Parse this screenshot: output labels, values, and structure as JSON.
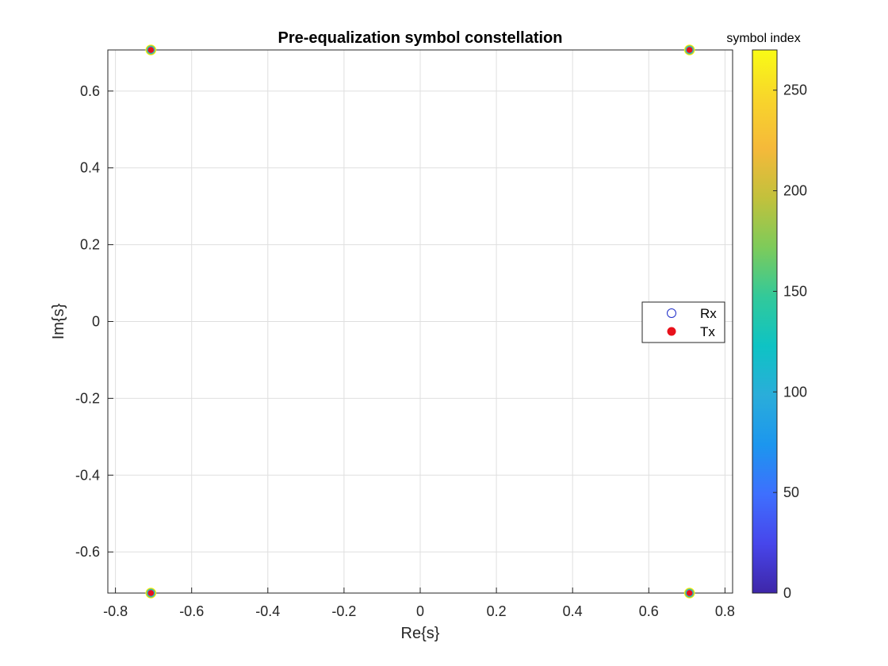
{
  "chart_data": {
    "type": "scatter",
    "title": "Pre-equalization symbol constellation",
    "xlabel": "Re{s}",
    "ylabel": "Im{s}",
    "xlim": [
      -0.82,
      0.82
    ],
    "ylim": [
      -0.707,
      0.707
    ],
    "xticks": [
      -0.8,
      -0.6,
      -0.4,
      -0.2,
      0,
      0.2,
      0.4,
      0.6,
      0.8
    ],
    "xtick_labels": [
      "-0.8",
      "-0.6",
      "-0.4",
      "-0.2",
      "0",
      "0.2",
      "0.4",
      "0.6",
      "0.8"
    ],
    "yticks": [
      -0.6,
      -0.4,
      -0.2,
      0,
      0.2,
      0.4,
      0.6
    ],
    "ytick_labels": [
      "-0.6",
      "-0.4",
      "-0.2",
      "0",
      "0.2",
      "0.4",
      "0.6"
    ],
    "grid": true,
    "legend_position": "east",
    "series": [
      {
        "name": "Rx",
        "marker": "open-circle",
        "color_by": "symbol index",
        "points": [
          {
            "x": -0.707,
            "y": 0.707
          },
          {
            "x": 0.707,
            "y": 0.707
          },
          {
            "x": -0.707,
            "y": -0.707
          },
          {
            "x": 0.707,
            "y": -0.707
          }
        ]
      },
      {
        "name": "Tx",
        "marker": "filled-circle",
        "color": "#e8111b",
        "points": [
          {
            "x": -0.707,
            "y": 0.707
          },
          {
            "x": 0.707,
            "y": 0.707
          },
          {
            "x": -0.707,
            "y": -0.707
          },
          {
            "x": 0.707,
            "y": -0.707
          }
        ]
      }
    ],
    "colorbar": {
      "title": "symbol index",
      "colormap": "parula",
      "range": [
        0,
        270
      ],
      "ticks": [
        0,
        50,
        100,
        150,
        200,
        250
      ],
      "tick_labels": [
        "0",
        "50",
        "100",
        "150",
        "200",
        "250"
      ],
      "stops": [
        "#3e26a8",
        "#4746eb",
        "#3e6ffe",
        "#1c96ee",
        "#2aadda",
        "#0ec3c4",
        "#32c99a",
        "#7dcb5a",
        "#c2c13c",
        "#f5b93a",
        "#f8d52b",
        "#f9fb15"
      ]
    },
    "legend": {
      "rx_label": "Rx",
      "tx_label": "Tx",
      "rx_edge_color": "#1f2ec9",
      "tx_color": "#e8111b"
    }
  }
}
